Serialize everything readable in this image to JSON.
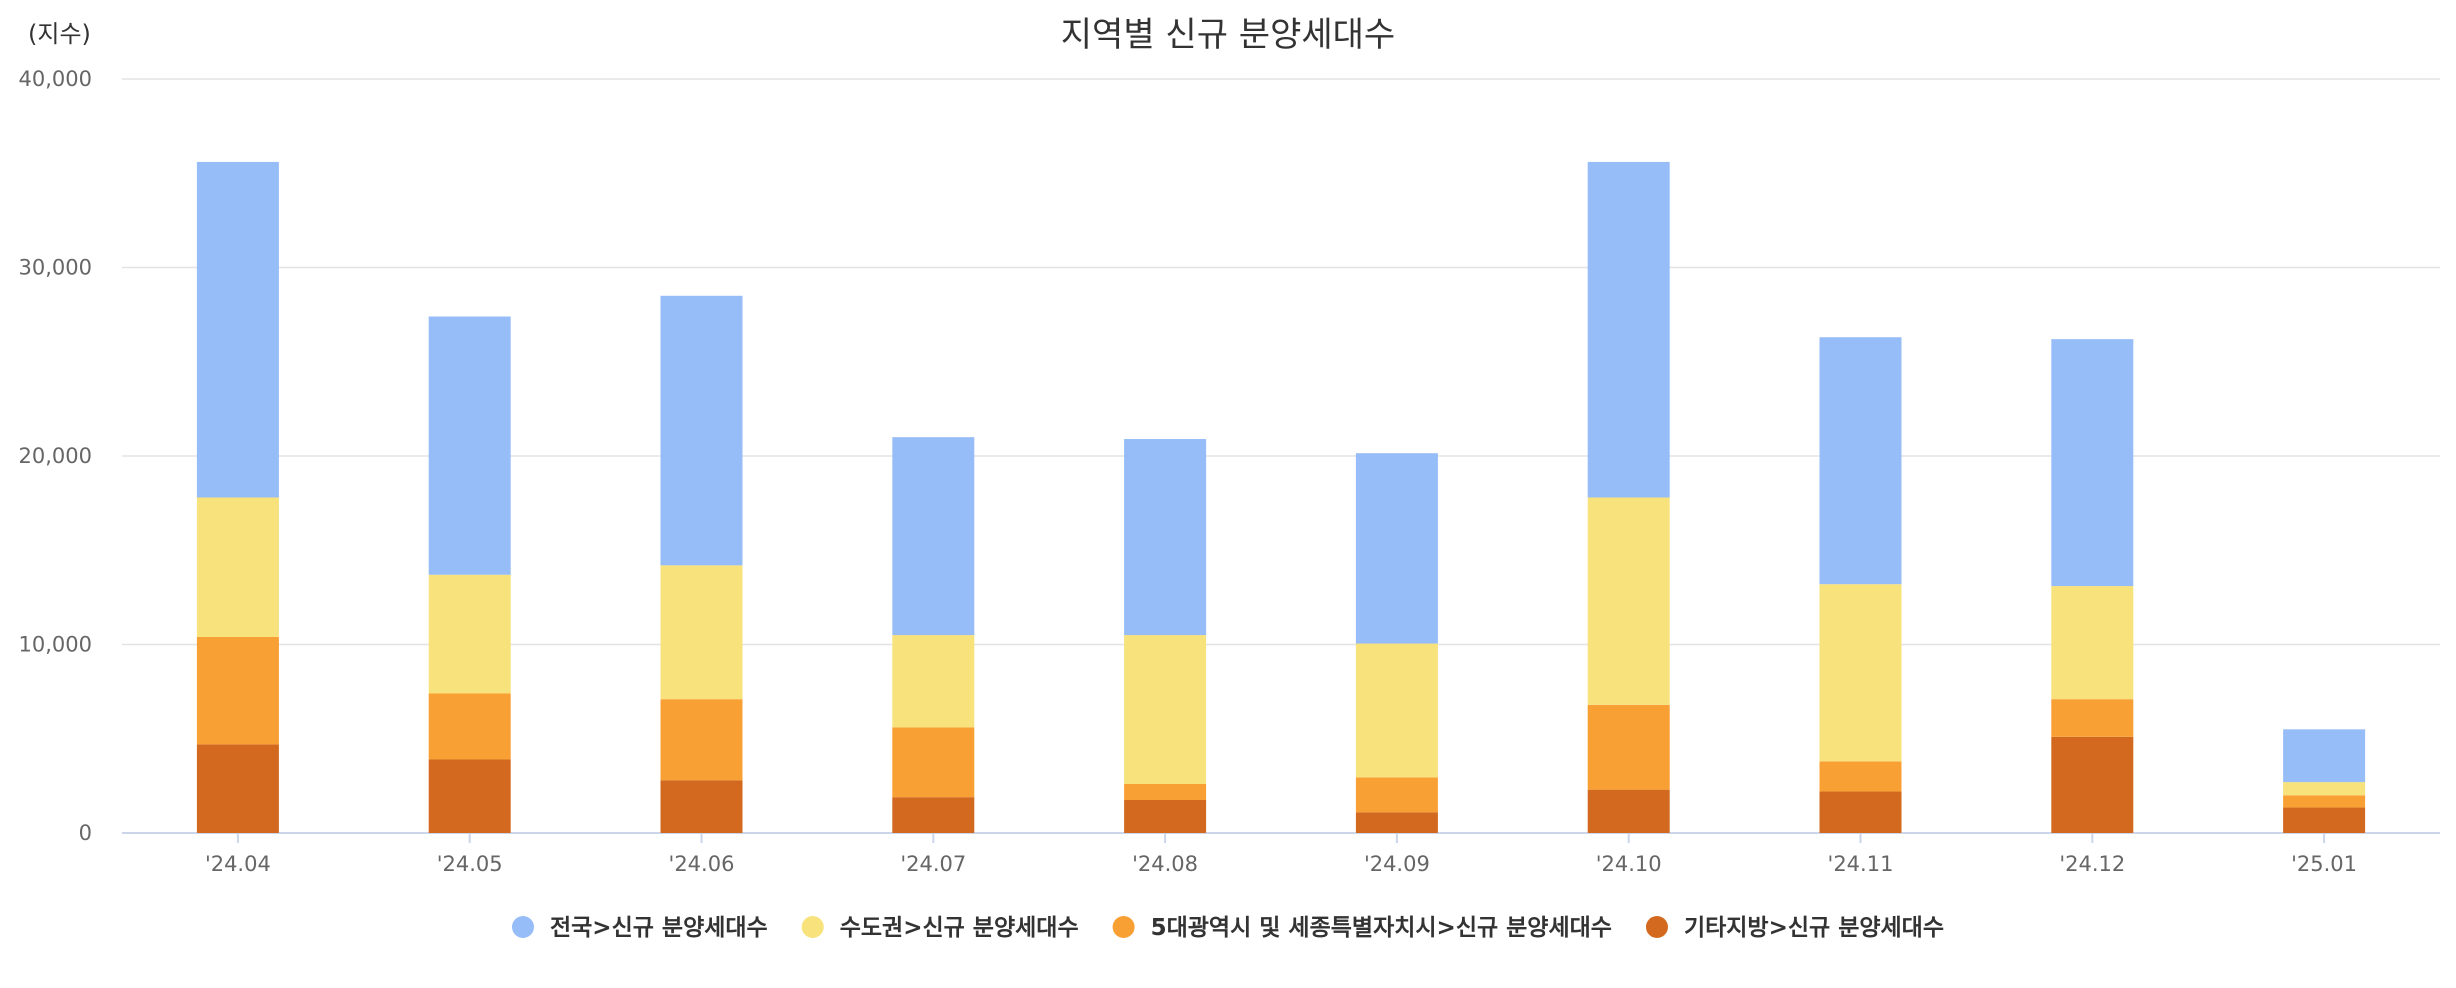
{
  "chart_data": {
    "type": "bar",
    "stacked": true,
    "title": "지역별 신규 분양세대수",
    "ylabel": "(지수)",
    "xlabel": "",
    "ylim": [
      0,
      40000
    ],
    "yticks": [
      0,
      10000,
      20000,
      30000,
      40000
    ],
    "ytick_labels": [
      "0",
      "10,000",
      "20,000",
      "30,000",
      "40,000"
    ],
    "grid": true,
    "legend_position": "bottom",
    "categories": [
      "'24.04",
      "'24.05",
      "'24.06",
      "'24.07",
      "'24.08",
      "'24.09",
      "'24.10",
      "'24.11",
      "'24.12",
      "'25.01"
    ],
    "series": [
      {
        "name": "기타지방>신규 분양세대수",
        "color": "#d2691e",
        "values": [
          4700,
          3900,
          2800,
          1900,
          1750,
          1100,
          2300,
          2200,
          5100,
          1350
        ]
      },
      {
        "name": "5대광역시 및 세종특별자치시>신규 분양세대수",
        "color": "#f9a035",
        "values": [
          5700,
          3500,
          4300,
          3700,
          850,
          1850,
          4500,
          1600,
          2000,
          650
        ]
      },
      {
        "name": "수도권>신규 분양세대수",
        "color": "#f8e27b",
        "values": [
          7400,
          6300,
          7100,
          4900,
          7900,
          7100,
          11000,
          9400,
          6000,
          700
        ]
      },
      {
        "name": "전국>신규 분양세대수",
        "color": "#96bdf7",
        "values": [
          17800,
          13700,
          14300,
          10500,
          10400,
          10100,
          17800,
          13100,
          13100,
          2800
        ]
      }
    ],
    "legend_order": [
      "전국>신규 분양세대수",
      "수도권>신규 분양세대수",
      "5대광역시 및 세종특별자치시>신규 분양세대수",
      "기타지방>신규 분양세대수"
    ]
  }
}
